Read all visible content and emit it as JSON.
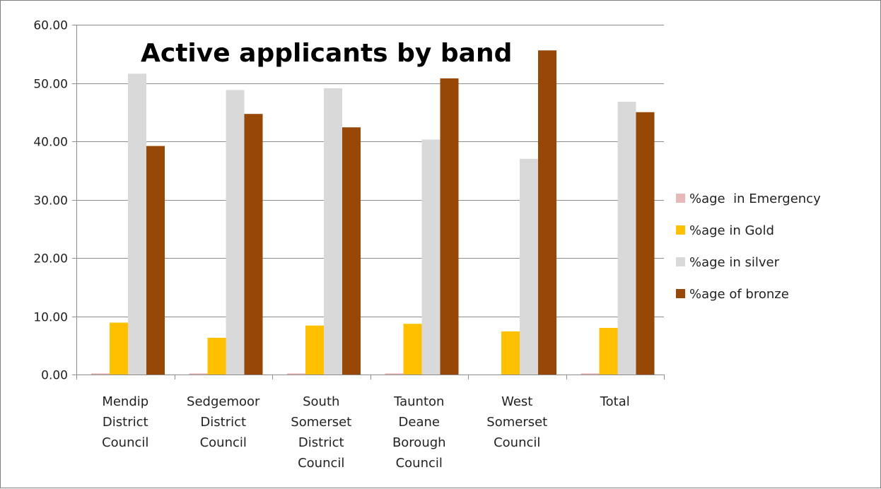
{
  "chart_data": {
    "type": "bar",
    "title": "Active applicants by band",
    "xlabel": "",
    "ylabel": "",
    "ylim": [
      0,
      60
    ],
    "yticks": [
      "0.00",
      "10.00",
      "20.00",
      "30.00",
      "40.00",
      "50.00",
      "60.00"
    ],
    "ytick_values": [
      0,
      10,
      20,
      30,
      40,
      50,
      60
    ],
    "grid": true,
    "legend_position": "right",
    "categories": [
      [
        "Mendip",
        "District",
        "Council"
      ],
      [
        "Sedgemoor",
        "District",
        "Council"
      ],
      [
        "South",
        "Somerset",
        "District",
        "Council"
      ],
      [
        "Taunton",
        "Deane",
        "Borough",
        "Council"
      ],
      [
        "West",
        "Somerset",
        "Council"
      ],
      [
        "Total"
      ]
    ],
    "series": [
      {
        "name": "%age  in Emergency",
        "color": "#e6b9b8",
        "values": [
          0.2,
          0.2,
          0.2,
          0.2,
          0.0,
          0.2
        ]
      },
      {
        "name": "%age in Gold",
        "color": "#ffc000",
        "values": [
          8.9,
          6.3,
          8.4,
          8.7,
          7.4,
          8.0
        ]
      },
      {
        "name": "%age in silver",
        "color": "#d9d9d9",
        "values": [
          51.6,
          48.8,
          49.1,
          40.3,
          37.0,
          46.8
        ]
      },
      {
        "name": "%age of bronze",
        "color": "#974806",
        "values": [
          39.2,
          44.7,
          42.4,
          50.8,
          55.6,
          45.0
        ]
      }
    ]
  }
}
